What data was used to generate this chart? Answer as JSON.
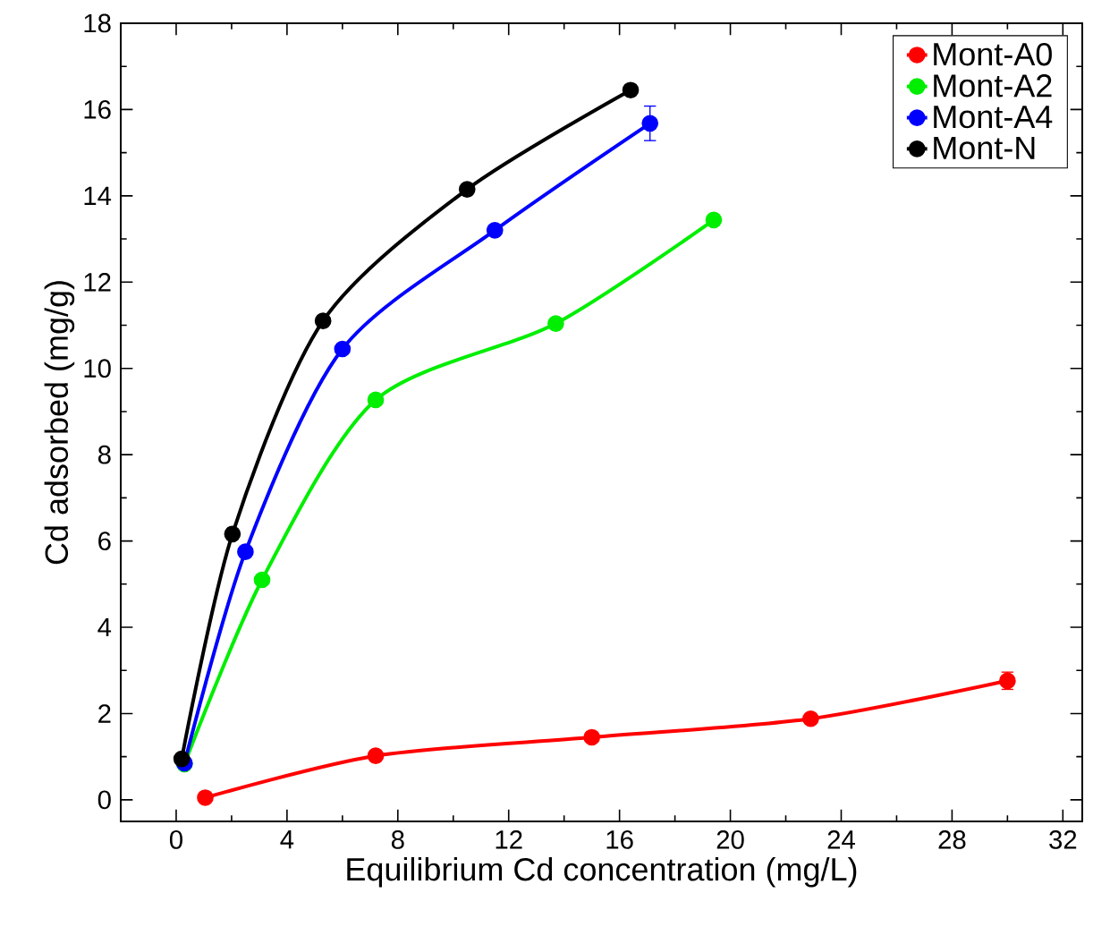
{
  "chart_data": {
    "type": "line",
    "xlabel": "Equilibrium Cd concentration (mg/L)",
    "ylabel": "Cd adsorbed (mg/g)",
    "xlim": [
      -2,
      32.7
    ],
    "ylim": [
      -0.5,
      18
    ],
    "xticks": [
      0,
      4,
      8,
      12,
      16,
      20,
      24,
      28,
      32
    ],
    "yticks": [
      0,
      2,
      4,
      6,
      8,
      10,
      12,
      14,
      16,
      18
    ],
    "marker": "circle",
    "line_style": "solid",
    "legend": "top right",
    "grid": false,
    "series": [
      {
        "name": "Mont-A0",
        "color": "#ff0000",
        "x": [
          1.05,
          7.2,
          15.0,
          22.9,
          30.0
        ],
        "values": [
          0.05,
          1.02,
          1.45,
          1.88,
          2.76
        ],
        "errors": [
          null,
          null,
          null,
          null,
          0.2
        ]
      },
      {
        "name": "Mont-A2",
        "color": "#00ee00",
        "x": [
          0.3,
          3.1,
          7.2,
          13.7,
          19.4
        ],
        "values": [
          0.83,
          5.1,
          9.27,
          11.04,
          13.44
        ]
      },
      {
        "name": "Mont-A4",
        "color": "#0000ff",
        "x": [
          0.3,
          2.5,
          6.0,
          11.5,
          17.1
        ],
        "values": [
          0.85,
          5.75,
          10.45,
          13.2,
          15.68
        ],
        "errors": [
          null,
          null,
          null,
          0.1,
          0.4
        ]
      },
      {
        "name": "Mont-N",
        "color": "#000000",
        "x": [
          0.2,
          2.03,
          5.3,
          10.5,
          16.4
        ],
        "values": [
          0.95,
          6.16,
          11.1,
          14.15,
          16.45
        ]
      }
    ]
  }
}
